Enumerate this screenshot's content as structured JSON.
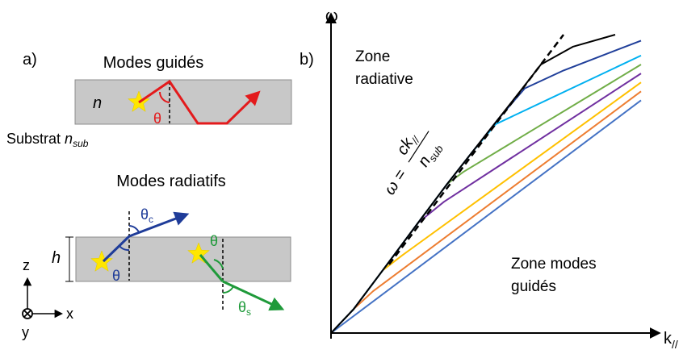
{
  "panel_a": {
    "label": "a)",
    "guided_title": "Modes guidés",
    "n_label": "n",
    "theta": "θ",
    "substrate_prefix": "Substrat ",
    "substrate_n": "n",
    "substrate_sub": "sub",
    "radiative_title": "Modes radiatifs",
    "h_label": "h",
    "theta_c_base": "θ",
    "theta_c_sub": "c",
    "theta_blue": "θ",
    "theta_green": "θ",
    "theta_s_base": "θ",
    "theta_s_sub": "s",
    "axis_z": "z",
    "axis_x": "x",
    "axis_y": "y"
  },
  "panel_b": {
    "label": "b)",
    "omega_axis": "ω",
    "k_axis_base": "k",
    "k_axis_sub": "//",
    "zone_radiative_1": "Zone",
    "zone_radiative_2": "radiative",
    "zone_guided_1": "Zone modes",
    "zone_guided_2": "guidés",
    "lightline_lhs": "ω = ",
    "lightline_num": "ck",
    "lightline_num_sub": "//",
    "lightline_den": "n",
    "lightline_den_sub": "sub"
  },
  "colors": {
    "red": "#e31a1c",
    "blue": "#1f3c99",
    "green": "#1f9a3a",
    "star": "#ffe600",
    "slab": "#c8c8c8"
  },
  "chart_data": {
    "type": "line",
    "title": "",
    "xlabel": "k//",
    "ylabel": "ω",
    "units": "arbitrary",
    "series": [
      {
        "color": "#4472c4",
        "x": [
          0.0,
          0.96
        ],
        "y": [
          0.0,
          0.78
        ]
      },
      {
        "color": "#ed7d31",
        "x": [
          0.0,
          0.07,
          0.13,
          0.96
        ],
        "y": [
          0.0,
          0.08,
          0.14,
          0.81
        ]
      },
      {
        "color": "#ffc000",
        "x": [
          0.0,
          0.07,
          0.16,
          0.22,
          0.96
        ],
        "y": [
          0.0,
          0.08,
          0.21,
          0.26,
          0.84
        ]
      },
      {
        "color": "#7030a0",
        "x": [
          0.0,
          0.07,
          0.16,
          0.27,
          0.35,
          0.96
        ],
        "y": [
          0.0,
          0.08,
          0.21,
          0.37,
          0.44,
          0.87
        ]
      },
      {
        "color": "#70ad47",
        "x": [
          0.0,
          0.07,
          0.16,
          0.27,
          0.36,
          0.41,
          0.96
        ],
        "y": [
          0.0,
          0.08,
          0.21,
          0.37,
          0.5,
          0.54,
          0.9
        ]
      },
      {
        "color": "#00b0f0",
        "x": [
          0.0,
          0.07,
          0.16,
          0.27,
          0.36,
          0.44,
          0.51,
          0.96
        ],
        "y": [
          0.0,
          0.08,
          0.21,
          0.37,
          0.5,
          0.61,
          0.7,
          0.93
        ]
      },
      {
        "color": "#203f9a",
        "x": [
          0.0,
          0.07,
          0.16,
          0.27,
          0.36,
          0.44,
          0.52,
          0.6,
          0.72,
          0.96
        ],
        "y": [
          0.0,
          0.08,
          0.21,
          0.37,
          0.5,
          0.61,
          0.72,
          0.82,
          0.88,
          0.98
        ]
      },
      {
        "color": "#000000",
        "x": [
          0.0,
          0.07,
          0.16,
          0.27,
          0.36,
          0.44,
          0.52,
          0.6,
          0.65,
          0.75,
          0.88
        ],
        "y": [
          0.0,
          0.08,
          0.21,
          0.37,
          0.5,
          0.61,
          0.72,
          0.83,
          0.9,
          0.96,
          1.0
        ]
      }
    ],
    "light_line": {
      "style": "dashed",
      "x": [
        0.18,
        0.72
      ],
      "y": [
        0.23,
        1.0
      ]
    }
  }
}
